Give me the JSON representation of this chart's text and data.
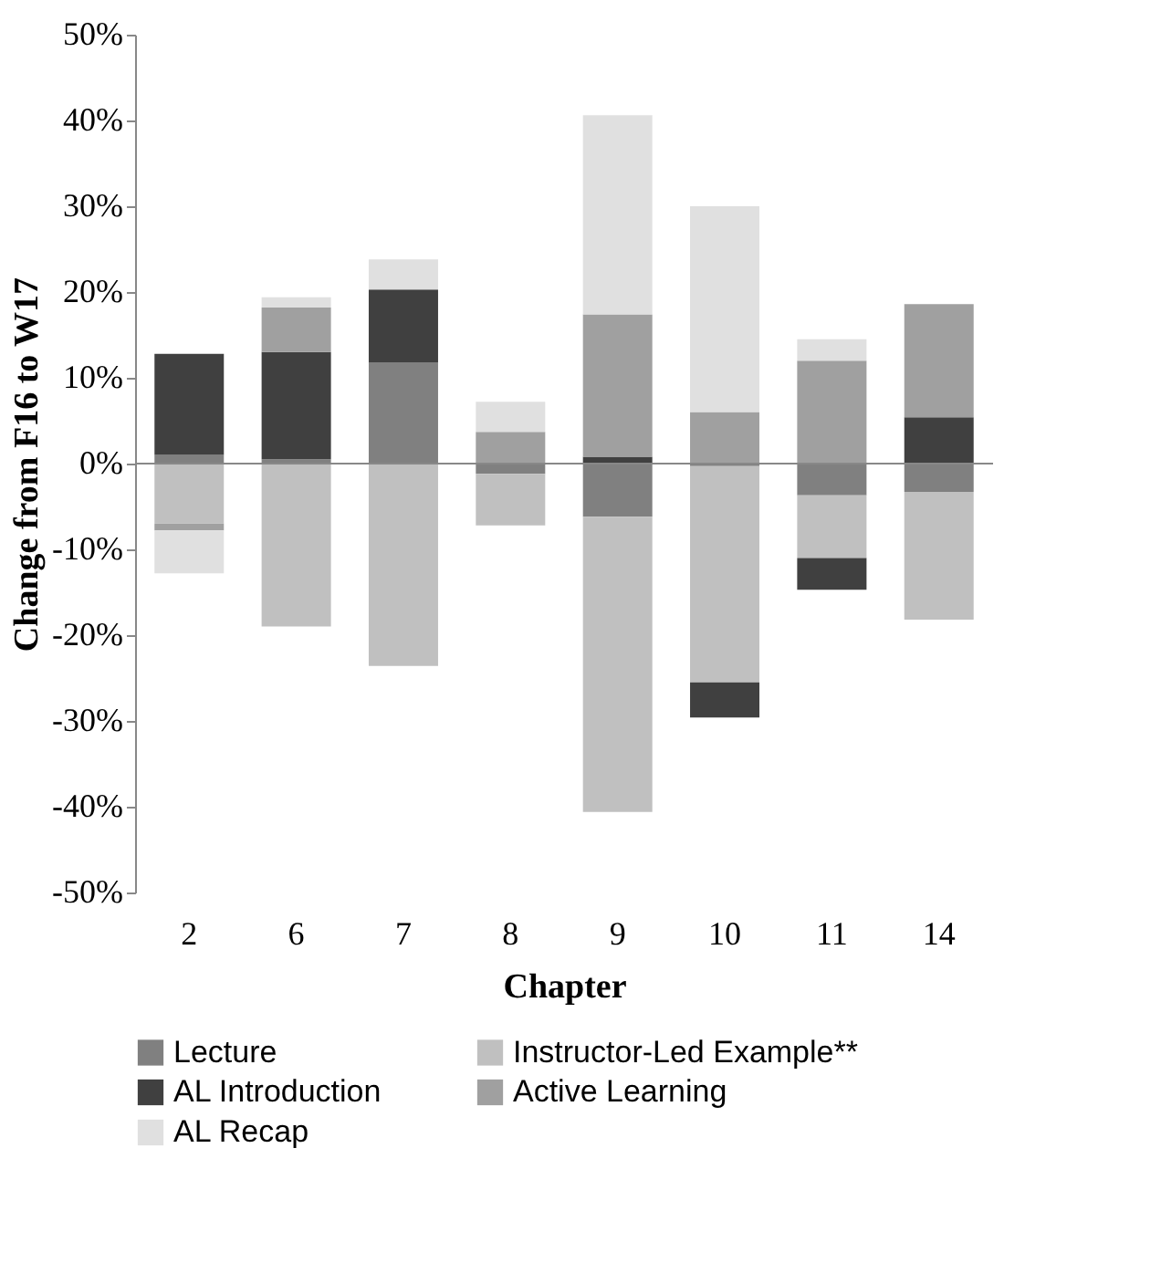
{
  "chart_data": {
    "type": "bar",
    "stacked": true,
    "xlabel": "Chapter",
    "ylabel": "Change from F16 to W17",
    "categories": [
      "2",
      "6",
      "7",
      "8",
      "9",
      "10",
      "11",
      "14"
    ],
    "series": [
      {
        "name": "Lecture",
        "color": "#808080",
        "values": [
          1.0,
          0.5,
          11.8,
          -1.2,
          -6.2,
          -0.3,
          -3.7,
          -3.3
        ]
      },
      {
        "name": "Instructor-Led Example**",
        "color": "#c0c0c0",
        "values": [
          -7.0,
          -19.0,
          -23.6,
          -6.0,
          -34.4,
          -25.2,
          -7.3,
          -14.9
        ]
      },
      {
        "name": "AL Introduction",
        "color": "#404040",
        "values": [
          11.8,
          12.5,
          8.5,
          null,
          0.8,
          -4.1,
          -3.7,
          5.4
        ]
      },
      {
        "name": "Active Learning",
        "color": "#a0a0a0",
        "values": [
          -0.8,
          5.2,
          null,
          3.7,
          16.6,
          6.0,
          12.0,
          13.2
        ]
      },
      {
        "name": "AL Recap",
        "color": "#e0e0e0",
        "values": [
          -5.0,
          1.2,
          3.5,
          3.5,
          23.2,
          24.0,
          2.5,
          null
        ]
      }
    ],
    "ylim": [
      -50,
      50
    ],
    "yticks": [
      {
        "value": -50,
        "label": "-50%"
      },
      {
        "value": -40,
        "label": "-40%"
      },
      {
        "value": -30,
        "label": "-30%"
      },
      {
        "value": -20,
        "label": "-20%"
      },
      {
        "value": -10,
        "label": "-10%"
      },
      {
        "value": 0,
        "label": "0%"
      },
      {
        "value": 10,
        "label": "10%"
      },
      {
        "value": 20,
        "label": "20%"
      },
      {
        "value": 30,
        "label": "30%"
      },
      {
        "value": 40,
        "label": "40%"
      },
      {
        "value": 50,
        "label": "50%"
      }
    ],
    "legend": "bottom"
  }
}
